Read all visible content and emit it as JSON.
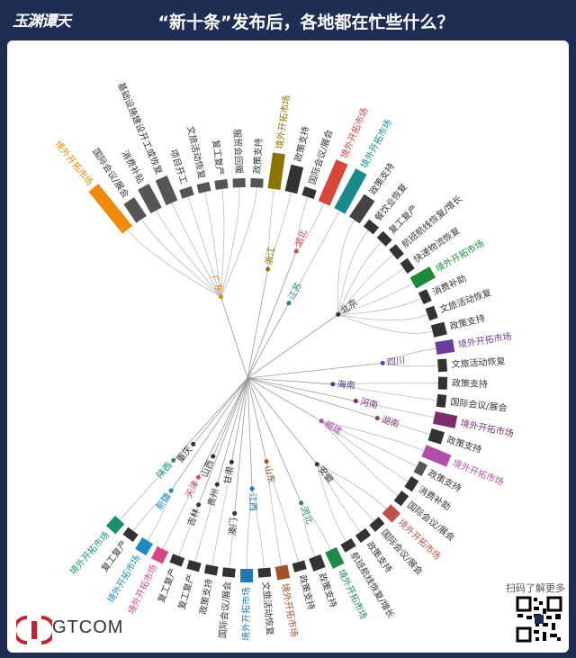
{
  "header": {
    "logo": "玉渊谭天",
    "title": "“新十条”发布后，各地都在忙些什么？"
  },
  "footer": {
    "brand": "GTCOM",
    "qr_caption": "扫码了解更多"
  },
  "chart_data": {
    "type": "radial-tree",
    "groups": [
      {
        "name": "广东",
        "color": "#e8820c",
        "leaves": [
          {
            "label": "境外开拓市场",
            "value": 6,
            "color": "#f08a0c"
          },
          {
            "label": "国际会议/展会",
            "value": 2.5,
            "color": "#555555"
          },
          {
            "label": "消费补贴",
            "value": 3,
            "color": "#555555"
          },
          {
            "label": "基础设施建设开工或恢复",
            "value": 3,
            "color": "#555555"
          },
          {
            "label": "项目开工",
            "value": 1,
            "color": "#555555"
          },
          {
            "label": "文旅活动恢复",
            "value": 1,
            "color": "#555555"
          },
          {
            "label": "复工复产",
            "value": 1,
            "color": "#555555"
          },
          {
            "label": "服贸会回暖",
            "value": 1,
            "color": "#555555"
          },
          {
            "label": "政策支持",
            "value": 1,
            "color": "#555555"
          }
        ]
      },
      {
        "name": "浙江",
        "color": "#8b7500",
        "leaves": [
          {
            "label": "境外开拓市场",
            "value": 4,
            "color": "#8b7500"
          },
          {
            "label": "政策支持",
            "value": 3,
            "color": "#333333"
          }
        ]
      },
      {
        "name": "湖北",
        "color": "#d9473a",
        "leaves": [
          {
            "label": "国际会议/展会",
            "value": 1,
            "color": "#333333"
          },
          {
            "label": "境外开拓市场",
            "value": 5,
            "color": "#d9473a"
          }
        ]
      },
      {
        "name": "江苏",
        "color": "#1a8a8a",
        "leaves": [
          {
            "label": "境外开拓市场",
            "value": 5,
            "color": "#1a8a8a"
          }
        ]
      },
      {
        "name": "北京",
        "color": "#333333",
        "leaves": [
          {
            "label": "政策支持",
            "value": 3,
            "color": "#444444"
          },
          {
            "label": "餐饮业恢复",
            "value": 1,
            "color": "#333333"
          },
          {
            "label": "复工复产",
            "value": 1,
            "color": "#333333"
          },
          {
            "label": "航班航线恢复/增长",
            "value": 1,
            "color": "#333333"
          },
          {
            "label": "快递物流恢复",
            "value": 1,
            "color": "#333333"
          },
          {
            "label": "境外开拓市场",
            "value": 2.5,
            "color": "#1f8a3a"
          },
          {
            "label": "消费补助",
            "value": 1,
            "color": "#333333"
          },
          {
            "label": "文旅活动恢复",
            "value": 1,
            "color": "#333333"
          },
          {
            "label": "政策支持",
            "value": 1.5,
            "color": "#333333"
          }
        ]
      },
      {
        "name": "四川",
        "color": "#6a3d9a",
        "leaves": [
          {
            "label": "境外开拓市场",
            "value": 2,
            "color": "#6a3d9a"
          },
          {
            "label": "文旅活动恢复",
            "value": 1,
            "color": "#333333"
          }
        ]
      },
      {
        "name": "海南",
        "color": "#4b3f8a",
        "leaves": [
          {
            "label": "政策支持",
            "value": 1,
            "color": "#333333"
          },
          {
            "label": "国际会议/展会",
            "value": 1,
            "color": "#333333"
          }
        ]
      },
      {
        "name": "河南",
        "color": "#7b2d6e",
        "leaves": [
          {
            "label": "境外开拓市场",
            "value": 2.5,
            "color": "#7b2d6e"
          }
        ]
      },
      {
        "name": "湖南",
        "color": "#8a3c78",
        "leaves": [
          {
            "label": "政策支持",
            "value": 1.5,
            "color": "#333333"
          }
        ]
      },
      {
        "name": "福建",
        "color": "#b04fa8",
        "leaves": [
          {
            "label": "境外开拓市场",
            "value": 3,
            "color": "#b04fa8"
          },
          {
            "label": "政策支持",
            "value": 1,
            "color": "#555555"
          },
          {
            "label": "消费补助",
            "value": 1,
            "color": "#333333"
          },
          {
            "label": "国际会议/展会",
            "value": 1,
            "color": "#333333"
          }
        ]
      },
      {
        "name": "安徽",
        "color": "#333333",
        "leaves": [
          {
            "label": "境外开拓市场",
            "value": 1.5,
            "color": "#c0504d"
          },
          {
            "label": "国际会议/展会",
            "value": 1,
            "color": "#333333"
          },
          {
            "label": "政策支持",
            "value": 1,
            "color": "#333333"
          },
          {
            "label": "航班航线恢复/增长",
            "value": 1,
            "color": "#333333"
          }
        ]
      },
      {
        "name": "河北",
        "color": "#2a8c4a",
        "leaves": [
          {
            "label": "境外开拓市场",
            "value": 2,
            "color": "#1f8a4a"
          },
          {
            "label": "政策支持",
            "value": 1.5,
            "color": "#333333"
          }
        ]
      },
      {
        "name": "山东",
        "color": "#a0522d",
        "leaves": [
          {
            "label": "政策支持",
            "value": 1,
            "color": "#333333"
          },
          {
            "label": "境外开拓市场",
            "value": 1.5,
            "color": "#a0522d"
          }
        ]
      },
      {
        "name": "江西",
        "color": "#1f78b4",
        "leaves": [
          {
            "label": "文旅活动恢复",
            "value": 1,
            "color": "#333333"
          },
          {
            "label": "境外开拓市场",
            "value": 1.5,
            "color": "#1f78b4"
          }
        ]
      },
      {
        "name": "澳门",
        "color": "#333333",
        "leaves": [
          {
            "label": "国际会议/展会",
            "value": 1,
            "color": "#333333"
          }
        ]
      },
      {
        "name": "甘肃",
        "color": "#333333",
        "leaves": [
          {
            "label": "政策支持",
            "value": 1,
            "color": "#333333"
          }
        ]
      },
      {
        "name": "贵州",
        "color": "#333333",
        "leaves": [
          {
            "label": "复工复产",
            "value": 1,
            "color": "#333333"
          }
        ]
      },
      {
        "name": "吉林",
        "color": "#333333",
        "leaves": [
          {
            "label": "复工复产",
            "value": 1,
            "color": "#333333"
          }
        ]
      },
      {
        "name": "山西",
        "color": "#333333",
        "leaves": []
      },
      {
        "name": "天津",
        "color": "#d6478a",
        "leaves": [
          {
            "label": "境外开拓市场",
            "value": 1.5,
            "color": "#d6478a"
          }
        ]
      },
      {
        "name": "新疆",
        "color": "#1f8ac0",
        "leaves": [
          {
            "label": "境外开拓市场",
            "value": 1.5,
            "color": "#1f8ac0"
          },
          {
            "label": "复工复产",
            "value": 1,
            "color": "#333333"
          }
        ]
      },
      {
        "name": "重庆",
        "color": "#333333",
        "leaves": []
      },
      {
        "name": "陕西",
        "color": "#1a9070",
        "leaves": [
          {
            "label": "境外开拓市场",
            "value": 1.5,
            "color": "#1a9070"
          }
        ]
      }
    ]
  }
}
